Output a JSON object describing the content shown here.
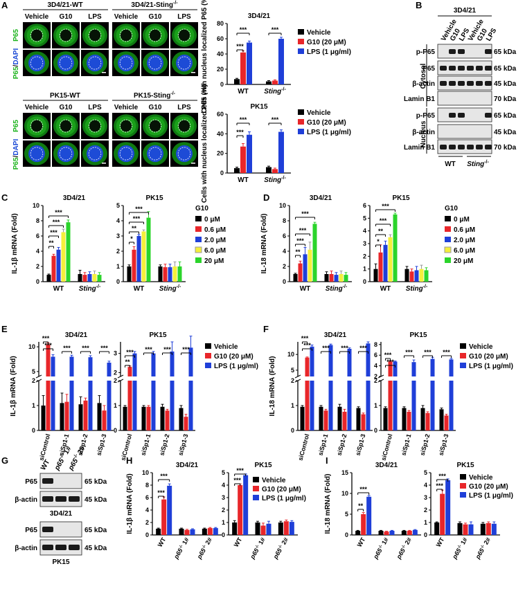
{
  "colors": {
    "vehicle": "#000000",
    "g10": "#e8262a",
    "lps": "#1f3fd8",
    "c0": "#000000",
    "c06": "#e8262a",
    "c2": "#1f3fd8",
    "c6": "#f5ef3c",
    "c20": "#2bd42b",
    "green": "#1db31d",
    "blue": "#1d4bd6"
  },
  "panels": {
    "A": "A",
    "B": "B",
    "C": "C",
    "D": "D",
    "E": "E",
    "F": "F",
    "G": "G",
    "H": "H",
    "I": "I"
  },
  "panelA": {
    "groups": [
      {
        "title": "3D4/21-WT",
        "cols": [
          "Vehicle",
          "G10",
          "LPS"
        ]
      },
      {
        "title": "3D4/21-Sting",
        "sup": "-/-",
        "cols": [
          "Vehicle",
          "G10",
          "LPS"
        ]
      },
      {
        "title": "PK15-WT",
        "cols": [
          "Vehicle",
          "G10",
          "LPS"
        ]
      },
      {
        "title": "PK15-Sting",
        "sup": "-/-",
        "cols": [
          "Vehicle",
          "G10",
          "LPS"
        ]
      }
    ],
    "row_p65": "P65",
    "row_dapi_p65": "P65",
    "row_dapi_slash": "/",
    "row_dapi": "DAPI"
  },
  "legend3": [
    "Vehicle",
    "G10 (20  μM)",
    "LPS (1 μg/ml)"
  ],
  "legend5_title": "G10",
  "legend5": [
    "0  μM",
    "0.6 μM",
    "2.0 μM",
    "6.0 μM",
    "20  μM"
  ],
  "sig": "***",
  "sig2": "**",
  "sig1": "*",
  "panelB": {
    "title": "3D4/21",
    "lanes": [
      "Vehicle",
      "G10",
      "LPS",
      "Vehicle",
      "G10",
      "LPS"
    ],
    "rows": [
      {
        "label": "p-P65",
        "kda": "65 kDa"
      },
      {
        "label": "P65",
        "kda": "65 kDa"
      },
      {
        "label": "β-actin",
        "kda": "45 kDa"
      },
      {
        "label": "Lamin B1",
        "kda": "70 kDa"
      },
      {
        "label": "p-P65",
        "kda": "65 kDa"
      },
      {
        "label": "β-actin",
        "kda": "45 kDa"
      },
      {
        "label": "Lamin B1",
        "kda": "70 kDa"
      }
    ],
    "cytosol": "Cytosol",
    "nucleus": "Nucleus",
    "wt": "WT",
    "sting": "Sting",
    "sting_sup": "-/-"
  },
  "panelG": {
    "lanes": [
      "WT",
      "p65",
      "p65"
    ],
    "lane_sup": "-/-",
    "lane_suffix": [
      "",
      "1#",
      "2#"
    ],
    "blots": [
      {
        "label": "P65",
        "kda": "65 kDa"
      },
      {
        "label": "β-actin",
        "kda": "45 kDa"
      },
      {
        "label": "P65",
        "kda": "65 kDa"
      },
      {
        "label": "β-actin",
        "kda": "45 kDa"
      }
    ],
    "cell1": "3D4/21",
    "cell2": "PK15"
  },
  "chart_data": [
    {
      "id": "A1",
      "type": "bar",
      "title": "3D4/21",
      "ylabel": "Cells with nucleus localized P65 (%)",
      "ylim": [
        0,
        80
      ],
      "yticks": [
        0,
        20,
        40,
        60,
        80
      ],
      "categories": [
        "WT",
        "Sting-/-"
      ],
      "series": [
        {
          "name": "Vehicle",
          "values": [
            7,
            4
          ],
          "err": [
            1,
            1
          ]
        },
        {
          "name": "G10 (20  μM)",
          "values": [
            42,
            5
          ],
          "err": [
            2,
            1
          ]
        },
        {
          "name": "LPS (1 μg/ml)",
          "values": [
            55,
            60
          ],
          "err": [
            2,
            2
          ]
        }
      ]
    },
    {
      "id": "A2",
      "type": "bar",
      "title": "PK15",
      "ylabel": "Cells with nucleus localized P65 (%)",
      "ylim": [
        0,
        60
      ],
      "yticks": [
        0,
        20,
        40,
        60
      ],
      "categories": [
        "WT",
        "Sting-/-"
      ],
      "series": [
        {
          "name": "Vehicle",
          "values": [
            5,
            6
          ],
          "err": [
            1,
            1
          ]
        },
        {
          "name": "G10 (20  μM)",
          "values": [
            27,
            4
          ],
          "err": [
            3,
            1
          ]
        },
        {
          "name": "LPS (1 μg/ml)",
          "values": [
            39,
            42
          ],
          "err": [
            3,
            2
          ]
        }
      ]
    },
    {
      "id": "C1",
      "type": "bar",
      "title": "3D4/21",
      "ylabel": "IL-1β mRNA (Fold)",
      "ylim": [
        0,
        10
      ],
      "yticks": [
        0,
        2,
        4,
        6,
        8,
        10
      ],
      "categories": [
        "WT",
        "Sting-/-"
      ],
      "series": [
        {
          "name": "0  μM",
          "values": [
            0.9,
            1.0
          ],
          "err": [
            0.1,
            0.5
          ]
        },
        {
          "name": "0.6 μM",
          "values": [
            3.4,
            0.9
          ],
          "err": [
            0.2,
            0.3
          ]
        },
        {
          "name": "2.0 μM",
          "values": [
            4.2,
            1.0
          ],
          "err": [
            0.3,
            0.3
          ]
        },
        {
          "name": "6.0 μM",
          "values": [
            6.5,
            1.0
          ],
          "err": [
            0.4,
            0.4
          ]
        },
        {
          "name": "20  μM",
          "values": [
            7.8,
            0.9
          ],
          "err": [
            0.3,
            0.3
          ]
        }
      ]
    },
    {
      "id": "C2",
      "type": "bar",
      "title": "PK15",
      "ylabel": "",
      "ylim": [
        0,
        5
      ],
      "yticks": [
        0,
        1,
        2,
        3,
        4,
        5
      ],
      "categories": [
        "WT",
        "Sting-/-"
      ],
      "series": [
        {
          "name": "0  μM",
          "values": [
            1.0,
            1.0
          ],
          "err": [
            0.1,
            0.1
          ]
        },
        {
          "name": "0.6 μM",
          "values": [
            2.1,
            0.95
          ],
          "err": [
            0.2,
            0.2
          ]
        },
        {
          "name": "2.0 μM",
          "values": [
            3.0,
            0.95
          ],
          "err": [
            0.1,
            0.2
          ]
        },
        {
          "name": "6.0 μM",
          "values": [
            3.3,
            1.0
          ],
          "err": [
            0.1,
            0.3
          ]
        },
        {
          "name": "20  μM",
          "values": [
            4.2,
            1.0
          ],
          "err": [
            0.4,
            0.3
          ]
        }
      ]
    },
    {
      "id": "D1",
      "type": "bar",
      "title": "3D4/21",
      "ylabel": "IL-18 mRNA (Fold)",
      "ylim": [
        0,
        10
      ],
      "yticks": [
        0,
        2,
        4,
        6,
        8,
        10
      ],
      "categories": [
        "WT",
        "Sting-/-"
      ],
      "series": [
        {
          "name": "0  μM",
          "values": [
            1.0,
            1.0
          ],
          "err": [
            0.1,
            0.3
          ]
        },
        {
          "name": "0.6 μM",
          "values": [
            2.4,
            1.0
          ],
          "err": [
            0.3,
            0.4
          ]
        },
        {
          "name": "2.0 μM",
          "values": [
            3.6,
            0.9
          ],
          "err": [
            0.9,
            0.3
          ]
        },
        {
          "name": "6.0 μM",
          "values": [
            4.2,
            1.0
          ],
          "err": [
            1.0,
            0.4
          ]
        },
        {
          "name": "20  μM",
          "values": [
            7.6,
            0.9
          ],
          "err": [
            0.2,
            0.3
          ]
        }
      ]
    },
    {
      "id": "D2",
      "type": "bar",
      "title": "PK15",
      "ylabel": "",
      "ylim": [
        0,
        6
      ],
      "yticks": [
        0,
        1,
        2,
        3,
        4,
        5,
        6
      ],
      "categories": [
        "WT",
        "Sting-/-"
      ],
      "series": [
        {
          "name": "0  μM",
          "values": [
            1.0,
            1.0
          ],
          "err": [
            0.4,
            0.2
          ]
        },
        {
          "name": "0.6 μM",
          "values": [
            2.3,
            0.8
          ],
          "err": [
            0.6,
            0.2
          ]
        },
        {
          "name": "2.0 μM",
          "values": [
            2.9,
            0.9
          ],
          "err": [
            0.3,
            0.3
          ]
        },
        {
          "name": "6.0 μM",
          "values": [
            3.5,
            1.0
          ],
          "err": [
            0.2,
            0.3
          ]
        },
        {
          "name": "20  μM",
          "values": [
            5.3,
            0.9
          ],
          "err": [
            0.1,
            0.2
          ]
        }
      ]
    },
    {
      "id": "E1",
      "type": "bar",
      "title": "3D4/21",
      "ylabel": "IL-1β mRNA (Fold)",
      "broken": true,
      "categories": [
        "siControl",
        "siSp1-1",
        "siSp1-2",
        "siSp1-3"
      ],
      "series": [
        {
          "name": "Vehicle",
          "values": [
            1.0,
            1.1,
            1.05,
            1.1
          ],
          "err": [
            0.4,
            0.4,
            0.3,
            0.3
          ]
        },
        {
          "name": "G10 (20  μM)",
          "values": [
            10.5,
            1.15,
            1.2,
            0.8
          ],
          "err": [
            0.3,
            0.3,
            0.1,
            0.2
          ]
        },
        {
          "name": "LPS (1 μg/ml)",
          "values": [
            8.0,
            8.0,
            7.9,
            6.8
          ],
          "err": [
            0.4,
            0.3,
            0.3,
            0.3
          ]
        }
      ]
    },
    {
      "id": "E2",
      "type": "bar",
      "title": "PK15",
      "ylabel": "",
      "broken": true,
      "categories": [
        "siControl",
        "siSp1-1",
        "siSp1-2",
        "siSp1-3"
      ],
      "series": [
        {
          "name": "Vehicle",
          "values": [
            0.95,
            0.95,
            0.95,
            0.9
          ],
          "err": [
            0.05,
            0.05,
            0.1,
            0.1
          ]
        },
        {
          "name": "G10 (20  μM)",
          "values": [
            2.3,
            0.95,
            0.8,
            0.55
          ],
          "err": [
            0.05,
            0.05,
            0.05,
            0.1
          ]
        },
        {
          "name": "LPS (1 μg/ml)",
          "values": [
            3.0,
            3.0,
            3.1,
            3.3
          ],
          "err": [
            0.1,
            0.1,
            0.5,
            0.6
          ]
        }
      ]
    },
    {
      "id": "F1",
      "type": "bar",
      "title": "3D4/21",
      "ylabel": "IL-18 mRNA (Fold)",
      "broken": true,
      "categories": [
        "siControl",
        "siSp1-1",
        "siSp1-2",
        "siSp1-3"
      ],
      "series": [
        {
          "name": "Vehicle",
          "values": [
            0.95,
            0.95,
            0.95,
            0.9
          ],
          "err": [
            0.05,
            0.05,
            0.1,
            0.05
          ]
        },
        {
          "name": "G10 (20  μM)",
          "values": [
            9.0,
            0.8,
            0.75,
            0.65
          ],
          "err": [
            0.2,
            0.05,
            0.1,
            0.05
          ]
        },
        {
          "name": "LPS (1 μg/ml)",
          "values": [
            12.5,
            13.0,
            11.8,
            13.5
          ],
          "err": [
            0.5,
            0.3,
            0.3,
            0.5
          ]
        }
      ]
    },
    {
      "id": "F2",
      "type": "bar",
      "title": "PK15",
      "ylabel": "",
      "broken": true,
      "categories": [
        "siControl",
        "siSp1-1",
        "siSp1-2",
        "siSp1-3"
      ],
      "series": [
        {
          "name": "Vehicle",
          "values": [
            0.9,
            0.9,
            0.9,
            0.85
          ],
          "err": [
            0.05,
            0.05,
            0.1,
            0.05
          ]
        },
        {
          "name": "G10 (20  μM)",
          "values": [
            4.8,
            0.75,
            0.7,
            0.6
          ],
          "err": [
            0.1,
            0.05,
            0.05,
            0.05
          ]
        },
        {
          "name": "LPS (1 μg/ml)",
          "values": [
            4.8,
            4.7,
            5.3,
            5.2
          ],
          "err": [
            0.1,
            0.4,
            0.3,
            0.2
          ]
        }
      ]
    },
    {
      "id": "H1",
      "type": "bar",
      "title": "3D4/21",
      "ylabel": "IL-1β mRNA (Fold)",
      "ylim": [
        0,
        10
      ],
      "yticks": [
        0,
        2,
        4,
        6,
        8,
        10
      ],
      "categories": [
        "WT",
        "p65-/- 1#",
        "p65-/- 2#"
      ],
      "series": [
        {
          "name": "Vehicle",
          "values": [
            1.0,
            1.0,
            1.0
          ],
          "err": [
            0.1,
            0.1,
            0.1
          ]
        },
        {
          "name": "G10 (20  μM)",
          "values": [
            5.7,
            0.8,
            1.1
          ],
          "err": [
            0.4,
            0.1,
            0.1
          ]
        },
        {
          "name": "LPS (1 μg/ml)",
          "values": [
            7.9,
            0.9,
            1.1
          ],
          "err": [
            0.3,
            0.1,
            0.1
          ]
        }
      ]
    },
    {
      "id": "H2",
      "type": "bar",
      "title": "PK15",
      "ylabel": "",
      "ylim": [
        0,
        5
      ],
      "yticks": [
        0,
        1,
        2,
        3,
        4,
        5
      ],
      "categories": [
        "WT",
        "p65-/- 1#",
        "p65-/- 2#"
      ],
      "series": [
        {
          "name": "Vehicle",
          "values": [
            1.0,
            1.0,
            1.0
          ],
          "err": [
            0.15,
            0.1,
            0.1
          ]
        },
        {
          "name": "G10 (20  μM)",
          "values": [
            4.0,
            0.75,
            1.1
          ],
          "err": [
            0.1,
            0.2,
            0.1
          ]
        },
        {
          "name": "LPS (1 μg/ml)",
          "values": [
            4.8,
            0.9,
            1.05
          ],
          "err": [
            0.1,
            0.2,
            0.1
          ]
        }
      ]
    },
    {
      "id": "I1",
      "type": "bar",
      "title": "3D4/21",
      "ylabel": "IL-18 mRNA (Fold)",
      "ylim": [
        0,
        15
      ],
      "yticks": [
        0,
        5,
        10,
        15
      ],
      "categories": [
        "WT",
        "p65-/- 1#",
        "p65-/- 2#"
      ],
      "series": [
        {
          "name": "Vehicle",
          "values": [
            1.0,
            1.0,
            1.0
          ],
          "err": [
            0.1,
            0.1,
            0.1
          ]
        },
        {
          "name": "G10 (20  μM)",
          "values": [
            5.0,
            0.8,
            1.0
          ],
          "err": [
            0.4,
            0.1,
            0.1
          ]
        },
        {
          "name": "LPS (1 μg/ml)",
          "values": [
            9.2,
            1.0,
            1.2
          ],
          "err": [
            0.3,
            0.1,
            0.1
          ]
        }
      ]
    },
    {
      "id": "I2",
      "type": "bar",
      "title": "PK15",
      "ylabel": "",
      "ylim": [
        0,
        5
      ],
      "yticks": [
        0,
        1,
        2,
        3,
        4,
        5
      ],
      "categories": [
        "WT",
        "p65-/- 1#",
        "p65-/- 2#"
      ],
      "series": [
        {
          "name": "Vehicle",
          "values": [
            1.0,
            0.95,
            0.9
          ],
          "err": [
            0.05,
            0.1,
            0.1
          ]
        },
        {
          "name": "G10 (20  μM)",
          "values": [
            3.3,
            0.85,
            0.95
          ],
          "err": [
            0.3,
            0.1,
            0.1
          ]
        },
        {
          "name": "LPS (1 μg/ml)",
          "values": [
            4.4,
            0.85,
            0.9
          ],
          "err": [
            0.1,
            0.2,
            0.15
          ]
        }
      ]
    }
  ]
}
